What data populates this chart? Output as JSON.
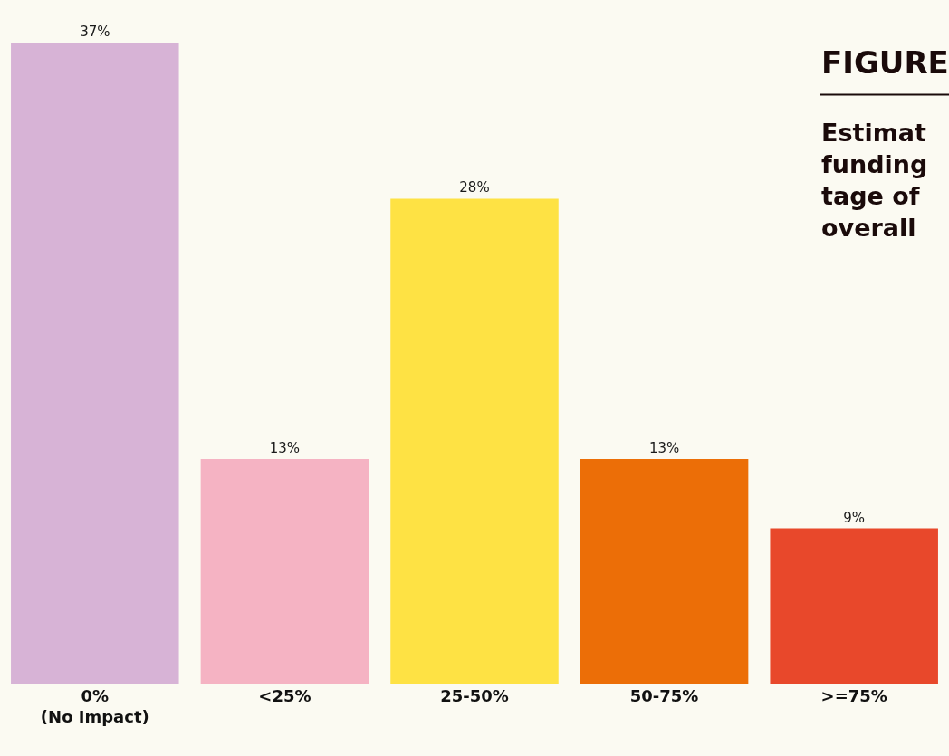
{
  "chart_data": {
    "type": "bar",
    "title": "FIGURE",
    "subtitle": "Estimat\nfunding\ntage of\noverall",
    "categories": [
      "0%\n(No Impact)",
      "<25%",
      "25-50%",
      "50-75%",
      ">=75%"
    ],
    "values": [
      37,
      13,
      28,
      13,
      9
    ],
    "colors": [
      "#d7b3d6",
      "#f5b3c3",
      "#fee244",
      "#ec6e07",
      "#e8482b"
    ],
    "value_labels": [
      "37%",
      "13%",
      "28%",
      "13%",
      "9%"
    ],
    "grid": false
  }
}
